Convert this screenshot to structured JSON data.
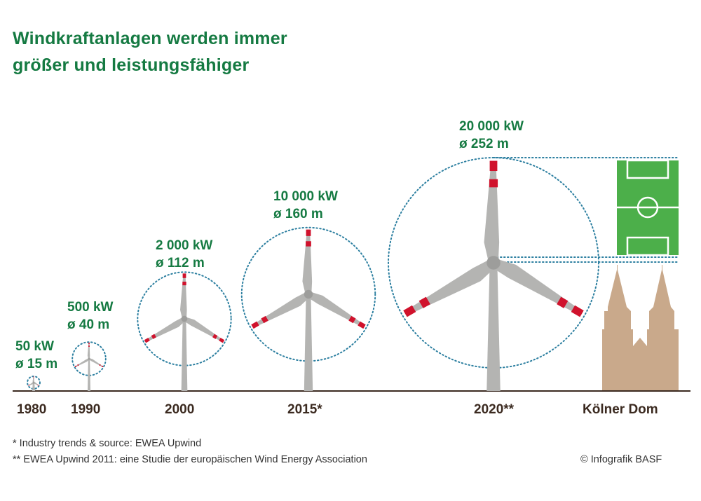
{
  "title": [
    "Windkraftanlagen werden immer",
    "größer und leistungsfähiger"
  ],
  "turbines": [
    {
      "year": "1980",
      "power": "50 kW",
      "diameter": "ø 15 m",
      "diameter_m": 15
    },
    {
      "year": "1990",
      "power": "500 kW",
      "diameter": "ø 40 m",
      "diameter_m": 40
    },
    {
      "year": "2000",
      "power": "2 000 kW",
      "diameter": "ø 112 m",
      "diameter_m": 112
    },
    {
      "year": "2015*",
      "power": "10 000 kW",
      "diameter": "ø 160 m",
      "diameter_m": 160
    },
    {
      "year": "2020**",
      "power": "20 000 kW",
      "diameter": "ø 252 m",
      "diameter_m": 252
    }
  ],
  "comparison": {
    "label": "Kölner Dom"
  },
  "footnotes": [
    "* Industry trends & source: EWEA Upwind",
    "** EWEA Upwind 2011: eine Studie der europäischen Wind Energy Association"
  ],
  "credit": "© Infografik BASF",
  "colors": {
    "green": "#157a42",
    "blade": "#b4b4b2",
    "red": "#d0122c",
    "ring": "#2c7fa0",
    "field": "#4caf4a",
    "dom": "#c9a98b",
    "ground": "#3b2a20"
  }
}
